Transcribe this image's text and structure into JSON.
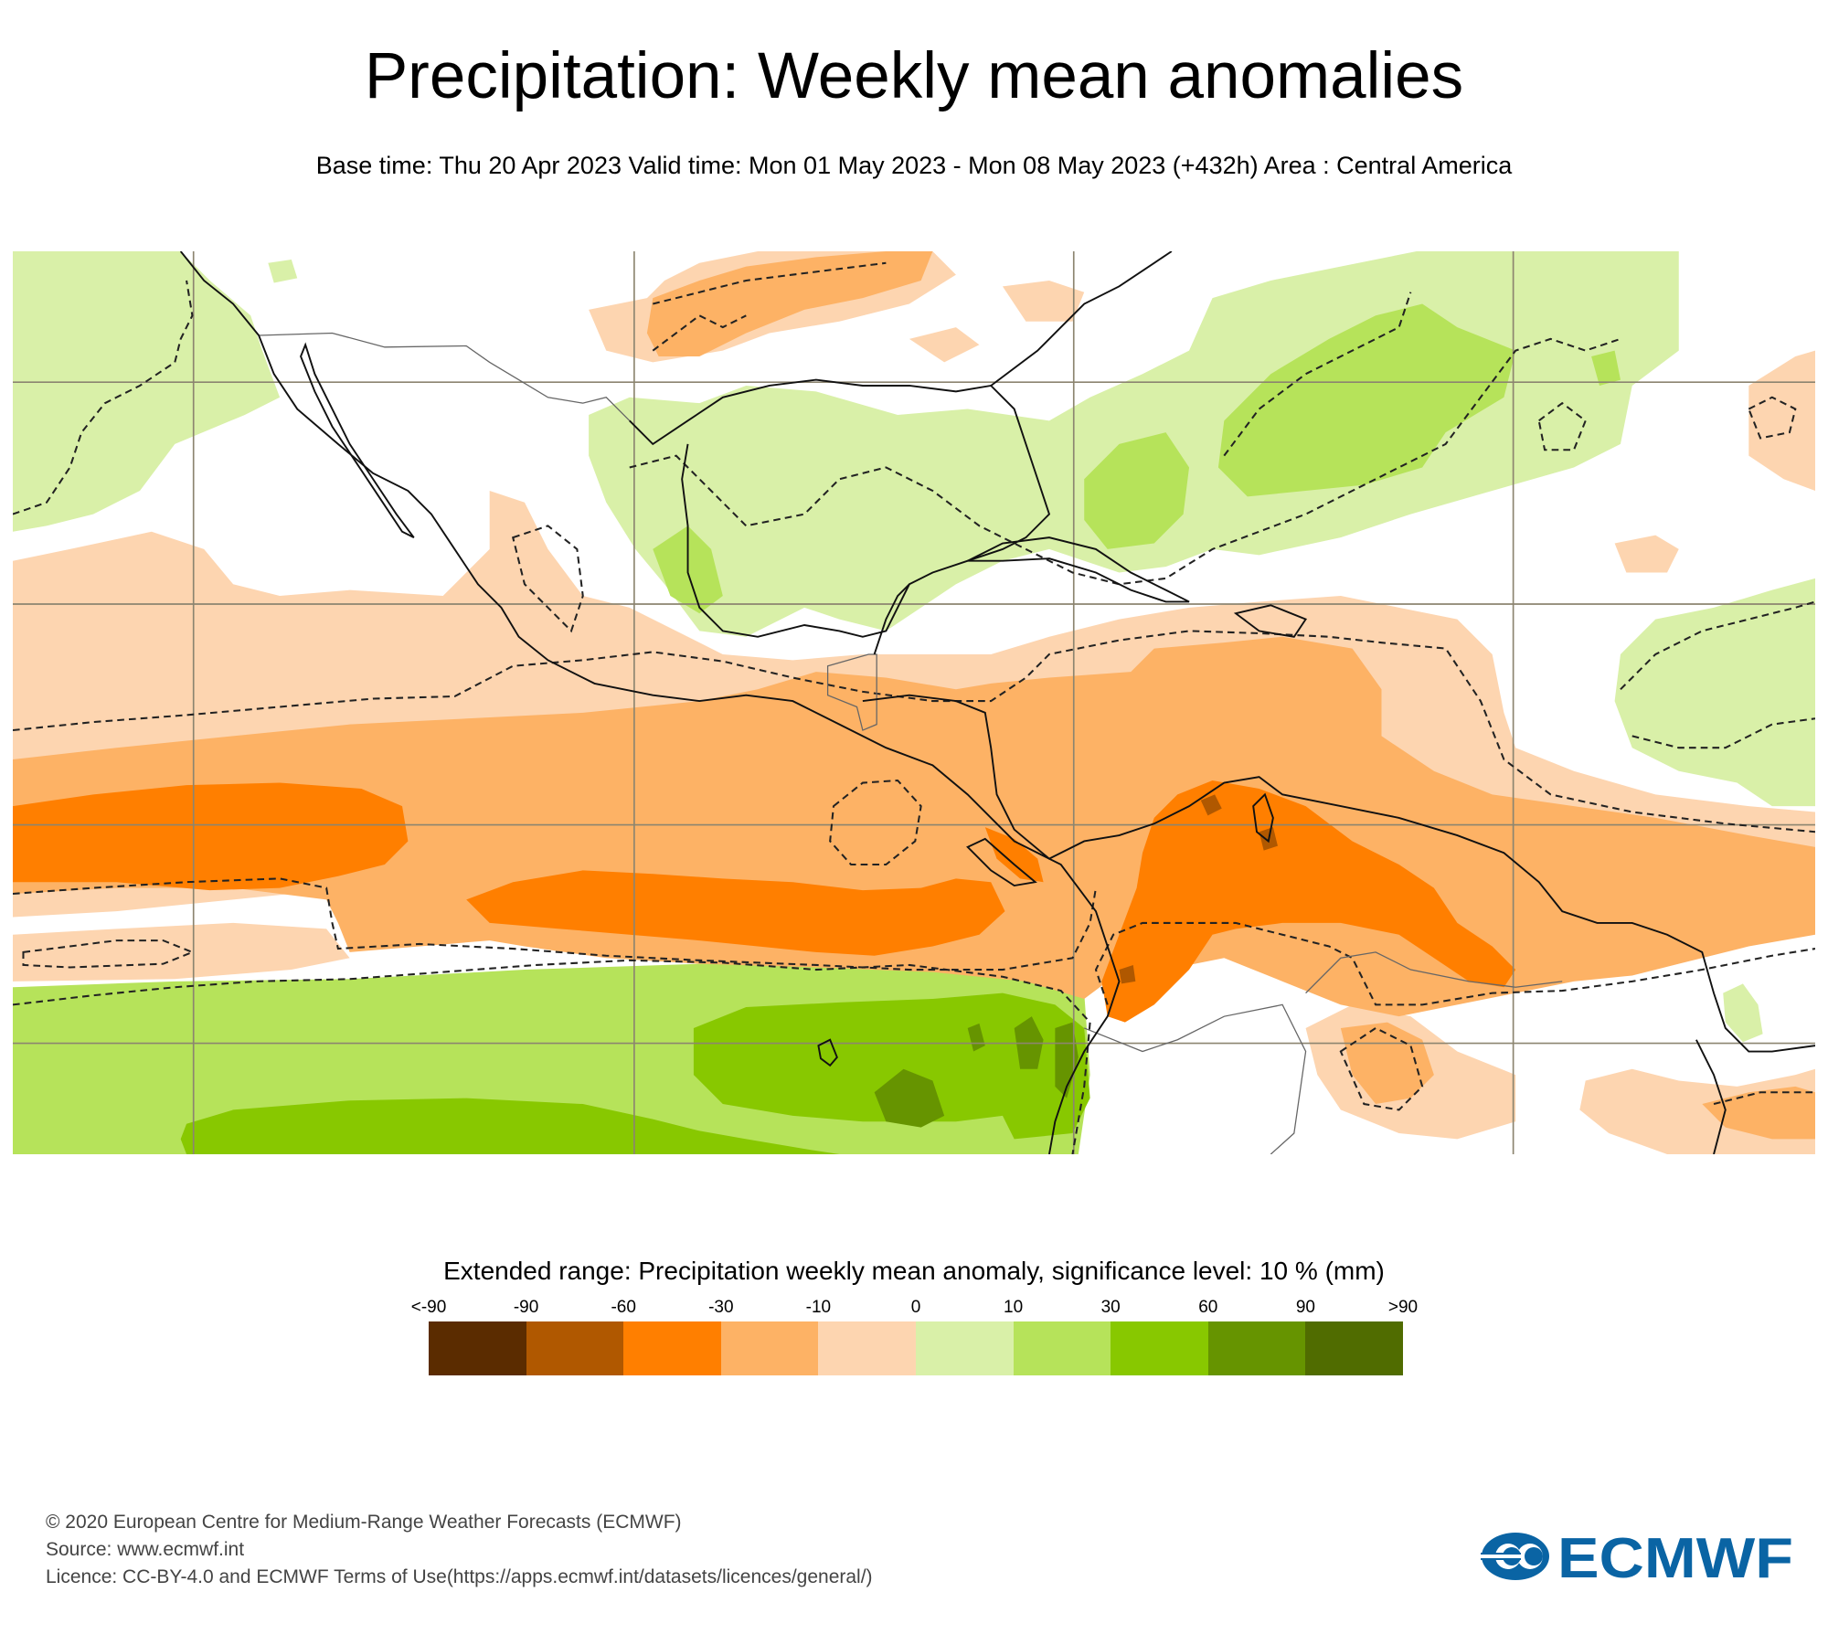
{
  "header": {
    "title": "Precipitation: Weekly mean anomalies",
    "subtitle": "Base time: Thu 20 Apr 2023 Valid time: Mon 01 May 2023 - Mon 08 May 2023 (+432h) Area : Central America"
  },
  "map": {
    "area": "Central America",
    "colors": {
      "ocean_background": "#ffffff",
      "gridline": "#8c8570",
      "coastline": "#111111",
      "border": "#666666",
      "significance_contour": "#222222"
    }
  },
  "legend": {
    "title": "Extended range: Precipitation weekly mean anomaly, significance level: 10 % (mm)",
    "ticks": [
      "<-90",
      "-90",
      "-60",
      "-30",
      "-10",
      "0",
      "10",
      "30",
      "60",
      "90",
      ">90"
    ],
    "bins": [
      {
        "range": "<-90",
        "color": "#5b2c00"
      },
      {
        "range": "-90 to -60",
        "color": "#b05800"
      },
      {
        "range": "-60 to -30",
        "color": "#ff7f00"
      },
      {
        "range": "-30 to -10",
        "color": "#fdb265"
      },
      {
        "range": "-10 to 0",
        "color": "#fdd5b0"
      },
      {
        "range": "0 to 10",
        "color": "#d9f0a8"
      },
      {
        "range": "10 to 30",
        "color": "#b6e35a"
      },
      {
        "range": "30 to 60",
        "color": "#88c800"
      },
      {
        "range": "60 to 90",
        "color": "#669400"
      },
      {
        "range": ">90",
        "color": "#506c00"
      }
    ]
  },
  "chart_data": {
    "type": "heatmap",
    "title": "Precipitation: Weekly mean anomalies",
    "subtitle": "Base time: Thu 20 Apr 2023 Valid time: Mon 01 May 2023 - Mon 08 May 2023 (+432h) Area : Central America",
    "colorbar_label": "Extended range: Precipitation weekly mean anomaly, significance level: 10 % (mm)",
    "colorbar_ticks": [
      "<-90",
      "-90",
      "-60",
      "-30",
      "-10",
      "0",
      "10",
      "30",
      "60",
      "90",
      ">90"
    ],
    "legend_position": "bottom",
    "grid": true
  },
  "footer": {
    "copyright": "© 2020 European Centre for Medium-Range Weather Forecasts (ECMWF)",
    "source": "Source: www.ecmwf.int",
    "licence": "Licence: CC-BY-4.0 and ECMWF Terms of Use(https://apps.ecmwf.int/datasets/licences/general/)"
  },
  "logo": {
    "text": "ECMWF",
    "color": "#0a64a4"
  }
}
